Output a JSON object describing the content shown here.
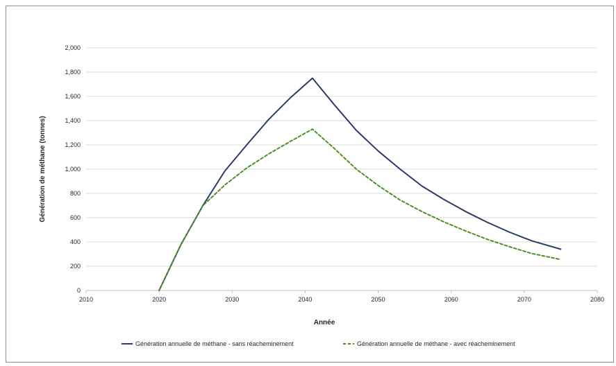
{
  "chart_data": {
    "type": "line",
    "xlabel": "Année",
    "ylabel": "Génération de méthane (tonnes)",
    "xlim": [
      2010,
      2080
    ],
    "ylim": [
      0,
      2000
    ],
    "x_ticks": [
      "2010",
      "2020",
      "2030",
      "2040",
      "2050",
      "2060",
      "2070",
      "2080"
    ],
    "y_ticks": [
      "0",
      "200",
      "400",
      "600",
      "800",
      "1,000",
      "1,200",
      "1,400",
      "1,600",
      "1,800",
      "2,000"
    ],
    "grid": "horizontal",
    "legend_position": "bottom",
    "x": [
      2020,
      2023,
      2026,
      2029,
      2032,
      2035,
      2038,
      2041,
      2044,
      2047,
      2050,
      2053,
      2056,
      2059,
      2062,
      2065,
      2068,
      2071,
      2075
    ],
    "series": [
      {
        "name": "Génération annuelle de méthane - sans réacheminement",
        "color": "#2b3a67",
        "style": "solid",
        "values": [
          0,
          380,
          700,
          985,
          1200,
          1410,
          1590,
          1750,
          1530,
          1320,
          1150,
          1000,
          860,
          750,
          650,
          560,
          480,
          410,
          340
        ]
      },
      {
        "name": "Génération annuelle de méthane - avec réacheminement",
        "color": "#4f8f2a",
        "style": "dashed",
        "values": [
          0,
          380,
          700,
          870,
          1010,
          1125,
          1230,
          1330,
          1170,
          1000,
          865,
          745,
          650,
          565,
          490,
          420,
          360,
          305,
          255
        ]
      }
    ]
  }
}
